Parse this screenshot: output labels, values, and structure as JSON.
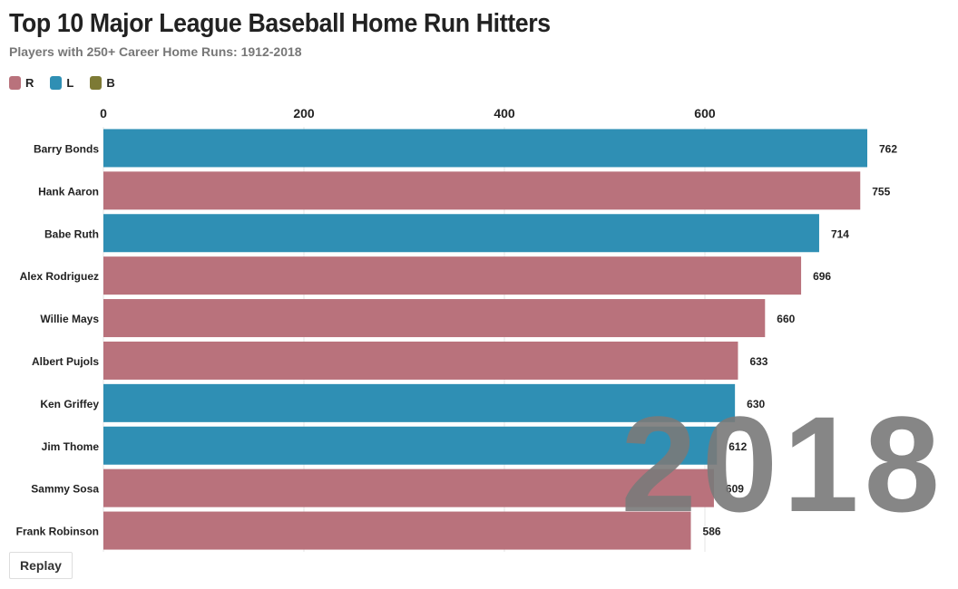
{
  "header": {
    "title": "Top 10 Major League Baseball Home Run Hitters",
    "subtitle": "Players with 250+ Career Home Runs: 1912-2018"
  },
  "legend": [
    {
      "label": "R",
      "color": "#b9727c"
    },
    {
      "label": "L",
      "color": "#2f8fb4"
    },
    {
      "label": "B",
      "color": "#7d7a35"
    }
  ],
  "year_label": "2018",
  "controls": {
    "replay_label": "Replay"
  },
  "chart_data": {
    "type": "bar",
    "orientation": "horizontal",
    "title": "Top 10 Major League Baseball Home Run Hitters",
    "subtitle": "Players with 250+ Career Home Runs: 1912-2018",
    "categories": [
      "Barry Bonds",
      "Hank Aaron",
      "Babe Ruth",
      "Alex Rodriguez",
      "Willie Mays",
      "Albert Pujols",
      "Ken Griffey",
      "Jim Thome",
      "Sammy Sosa",
      "Frank Robinson"
    ],
    "values": [
      762,
      755,
      714,
      696,
      660,
      633,
      630,
      612,
      609,
      586
    ],
    "bats": [
      "L",
      "R",
      "L",
      "R",
      "R",
      "R",
      "L",
      "L",
      "R",
      "R"
    ],
    "xlim": [
      0,
      762
    ],
    "xticks": [
      0,
      200,
      400,
      600
    ],
    "grid": true,
    "legend_position": "top-left"
  }
}
